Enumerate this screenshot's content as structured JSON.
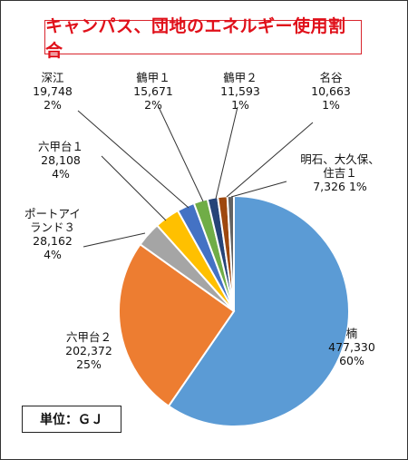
{
  "title": "キャンパス、団地のエネルギー使用割合",
  "unit_label": "単位：ＧＪ",
  "chart_data": {
    "type": "pie",
    "title": "キャンパス、団地のエネルギー使用割合",
    "unit": "GJ",
    "slices": [
      {
        "name": "楠",
        "value": 477330,
        "value_text": "477,330",
        "percent": "60%",
        "color": "#5b9bd5"
      },
      {
        "name": "六甲台２",
        "value": 202372,
        "value_text": "202,372",
        "percent": "25%",
        "color": "#ed7d31"
      },
      {
        "name": "ポートアイランド３",
        "value": 28162,
        "value_text": "28,162",
        "percent": "4%",
        "color": "#a5a5a5"
      },
      {
        "name": "六甲台１",
        "value": 28108,
        "value_text": "28,108",
        "percent": "4%",
        "color": "#ffc000"
      },
      {
        "name": "深江",
        "value": 19748,
        "value_text": "19,748",
        "percent": "2%",
        "color": "#4472c4"
      },
      {
        "name": "鶴甲１",
        "value": 15671,
        "value_text": "15,671",
        "percent": "2%",
        "color": "#70ad47"
      },
      {
        "name": "鶴甲２",
        "value": 11593,
        "value_text": "11,593",
        "percent": "1%",
        "color": "#264478"
      },
      {
        "name": "名谷",
        "value": 10663,
        "value_text": "10,663",
        "percent": "1%",
        "color": "#9e480e"
      },
      {
        "name": "明石、大久保、住吉１",
        "value": 7326,
        "value_text": "7,326",
        "percent": "1%",
        "color": "#636363"
      }
    ]
  }
}
